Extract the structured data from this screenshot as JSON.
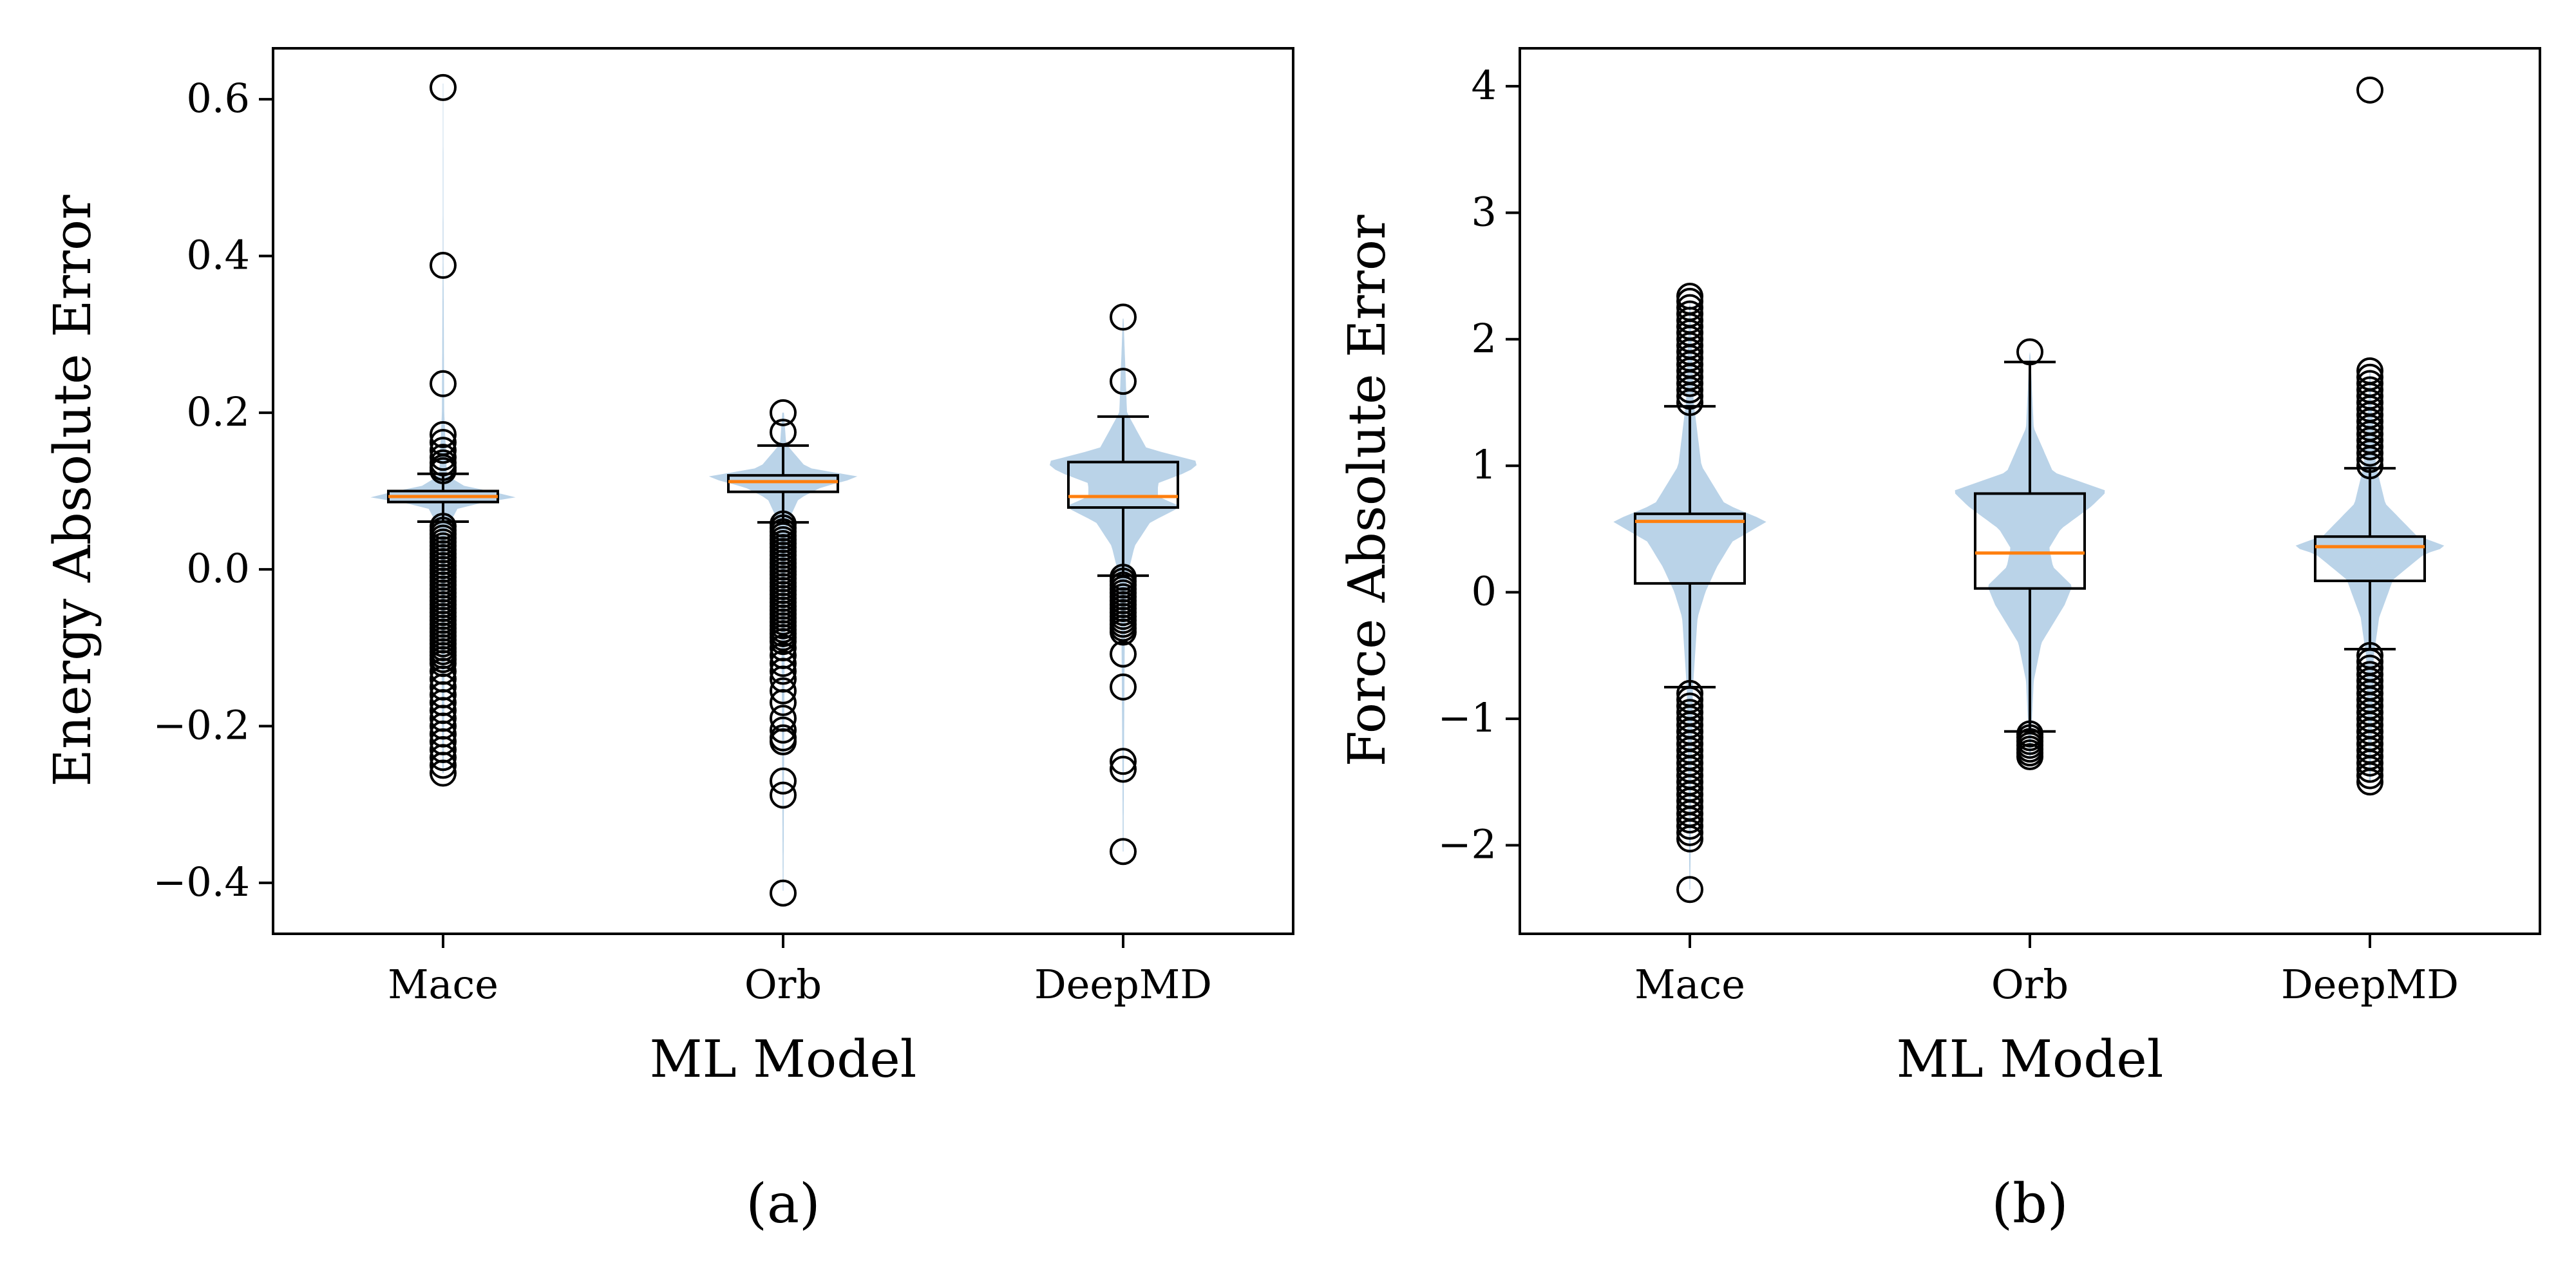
{
  "colors": {
    "violin_fill": "#a9c8e2",
    "box_edge": "#000000",
    "median": "#ff7f0e",
    "flier": "#000000",
    "background": "#ffffff"
  },
  "chart_data": [
    {
      "id": "a",
      "type": "violin+box",
      "caption": "(a)",
      "title": "",
      "xlabel": "ML Model",
      "ylabel": "Energy Absolute Error",
      "ylim": [
        -0.465,
        0.665
      ],
      "yticks": [
        -0.4,
        -0.2,
        0.0,
        0.2,
        0.4,
        0.6
      ],
      "ytick_labels": [
        "−0.4",
        "−0.2",
        "0.0",
        "0.2",
        "0.4",
        "0.6"
      ],
      "categories": [
        "Mace",
        "Orb",
        "DeepMD"
      ],
      "grid": false,
      "series": [
        {
          "category": "Mace",
          "q1": 0.086,
          "median": 0.093,
          "q3": 0.1,
          "whisker_low": 0.061,
          "whisker_high": 0.122,
          "violin_profile": [
            [
              -0.26,
              0.01
            ],
            [
              -0.2,
              0.015
            ],
            [
              -0.1,
              0.02
            ],
            [
              0.0,
              0.025
            ],
            [
              0.05,
              0.04
            ],
            [
              0.08,
              0.2
            ],
            [
              0.093,
              1.0
            ],
            [
              0.105,
              0.3
            ],
            [
              0.12,
              0.05
            ],
            [
              0.2,
              0.015
            ],
            [
              0.4,
              0.005
            ],
            [
              0.62,
              0.003
            ]
          ],
          "violin_halfwidth_fraction": 0.42,
          "outliers": [
            0.615,
            0.388,
            0.237,
            0.172,
            0.162,
            0.152,
            0.143,
            0.136,
            0.13,
            0.126,
            0.055,
            0.05,
            0.045,
            0.04,
            0.035,
            0.03,
            0.025,
            0.02,
            0.015,
            0.01,
            0.005,
            0.0,
            -0.005,
            -0.01,
            -0.015,
            -0.02,
            -0.025,
            -0.03,
            -0.035,
            -0.04,
            -0.045,
            -0.05,
            -0.055,
            -0.06,
            -0.065,
            -0.07,
            -0.075,
            -0.08,
            -0.085,
            -0.09,
            -0.095,
            -0.1,
            -0.105,
            -0.11,
            -0.115,
            -0.12,
            -0.13,
            -0.14,
            -0.15,
            -0.16,
            -0.17,
            -0.18,
            -0.19,
            -0.2,
            -0.21,
            -0.22,
            -0.23,
            -0.24,
            -0.25,
            -0.26
          ]
        },
        {
          "category": "Orb",
          "q1": 0.099,
          "median": 0.112,
          "q3": 0.12,
          "whisker_low": 0.06,
          "whisker_high": 0.158,
          "violin_profile": [
            [
              -0.41,
              0.005
            ],
            [
              -0.3,
              0.01
            ],
            [
              -0.2,
              0.015
            ],
            [
              -0.1,
              0.02
            ],
            [
              0.0,
              0.03
            ],
            [
              0.06,
              0.06
            ],
            [
              0.09,
              0.2
            ],
            [
              0.105,
              0.5
            ],
            [
              0.118,
              1.0
            ],
            [
              0.13,
              0.3
            ],
            [
              0.16,
              0.04
            ],
            [
              0.2,
              0.01
            ]
          ],
          "violin_halfwidth_fraction": 0.42,
          "outliers": [
            0.2,
            0.175,
            0.058,
            0.053,
            0.048,
            0.043,
            0.038,
            0.033,
            0.028,
            0.023,
            0.018,
            0.013,
            0.008,
            0.003,
            -0.002,
            -0.007,
            -0.012,
            -0.017,
            -0.022,
            -0.027,
            -0.032,
            -0.037,
            -0.042,
            -0.047,
            -0.052,
            -0.057,
            -0.062,
            -0.067,
            -0.072,
            -0.077,
            -0.082,
            -0.087,
            -0.092,
            -0.1,
            -0.11,
            -0.12,
            -0.13,
            -0.14,
            -0.155,
            -0.17,
            -0.19,
            -0.205,
            -0.215,
            -0.22,
            -0.27,
            -0.288,
            -0.413
          ]
        },
        {
          "category": "DeepMD",
          "q1": 0.079,
          "median": 0.093,
          "q3": 0.137,
          "whisker_low": -0.008,
          "whisker_high": 0.195,
          "violin_profile": [
            [
              -0.36,
              0.005
            ],
            [
              -0.25,
              0.01
            ],
            [
              -0.1,
              0.02
            ],
            [
              -0.01,
              0.05
            ],
            [
              0.03,
              0.15
            ],
            [
              0.06,
              0.35
            ],
            [
              0.08,
              0.75
            ],
            [
              0.093,
              0.45
            ],
            [
              0.11,
              0.45
            ],
            [
              0.125,
              0.85
            ],
            [
              0.137,
              1.0
            ],
            [
              0.155,
              0.3
            ],
            [
              0.2,
              0.05
            ],
            [
              0.32,
              0.005
            ]
          ],
          "violin_halfwidth_fraction": 0.42,
          "outliers": [
            0.322,
            0.24,
            -0.01,
            -0.015,
            -0.02,
            -0.025,
            -0.03,
            -0.035,
            -0.04,
            -0.045,
            -0.05,
            -0.055,
            -0.06,
            -0.065,
            -0.07,
            -0.075,
            -0.08,
            -0.108,
            -0.15,
            -0.245,
            -0.255,
            -0.36
          ]
        }
      ]
    },
    {
      "id": "b",
      "type": "violin+box",
      "caption": "(b)",
      "title": "",
      "xlabel": "ML Model",
      "ylabel": "Force Absolute Error",
      "ylim": [
        -2.7,
        4.3
      ],
      "yticks": [
        -2,
        -1,
        0,
        1,
        2,
        3,
        4
      ],
      "ytick_labels": [
        "−2",
        "−1",
        "0",
        "1",
        "2",
        "3",
        "4"
      ],
      "categories": [
        "Mace",
        "Orb",
        "DeepMD"
      ],
      "grid": false,
      "series": [
        {
          "category": "Mace",
          "q1": 0.07,
          "median": 0.56,
          "q3": 0.62,
          "whisker_low": -0.75,
          "whisker_high": 1.47,
          "violin_profile": [
            [
              -2.35,
              0.005
            ],
            [
              -1.5,
              0.02
            ],
            [
              -0.75,
              0.04
            ],
            [
              -0.2,
              0.1
            ],
            [
              0.0,
              0.2
            ],
            [
              0.2,
              0.35
            ],
            [
              0.4,
              0.55
            ],
            [
              0.56,
              1.0
            ],
            [
              0.7,
              0.45
            ],
            [
              1.0,
              0.15
            ],
            [
              1.5,
              0.05
            ],
            [
              2.3,
              0.005
            ]
          ],
          "violin_halfwidth_fraction": 0.42,
          "outliers": [
            2.34,
            2.3,
            2.25,
            2.2,
            2.15,
            2.1,
            2.05,
            2.0,
            1.95,
            1.9,
            1.85,
            1.8,
            1.75,
            1.7,
            1.65,
            1.6,
            1.55,
            1.5,
            -0.8,
            -0.85,
            -0.9,
            -0.95,
            -1.0,
            -1.05,
            -1.1,
            -1.15,
            -1.2,
            -1.25,
            -1.3,
            -1.35,
            -1.4,
            -1.45,
            -1.5,
            -1.55,
            -1.6,
            -1.65,
            -1.7,
            -1.75,
            -1.8,
            -1.85,
            -1.9,
            -1.95,
            -2.35
          ]
        },
        {
          "category": "Orb",
          "q1": 0.03,
          "median": 0.31,
          "q3": 0.78,
          "whisker_low": -1.1,
          "whisker_high": 1.82,
          "violin_profile": [
            [
              -1.3,
              0.01
            ],
            [
              -1.1,
              0.02
            ],
            [
              -0.7,
              0.05
            ],
            [
              -0.4,
              0.15
            ],
            [
              -0.1,
              0.45
            ],
            [
              0.05,
              0.55
            ],
            [
              0.2,
              0.3
            ],
            [
              0.35,
              0.25
            ],
            [
              0.5,
              0.4
            ],
            [
              0.68,
              0.8
            ],
            [
              0.8,
              1.0
            ],
            [
              0.95,
              0.3
            ],
            [
              1.3,
              0.05
            ],
            [
              1.9,
              0.005
            ]
          ],
          "violin_halfwidth_fraction": 0.42,
          "outliers": [
            1.9,
            -1.12,
            -1.15,
            -1.18,
            -1.21,
            -1.24,
            -1.27,
            -1.3
          ]
        },
        {
          "category": "DeepMD",
          "q1": 0.09,
          "median": 0.36,
          "q3": 0.44,
          "whisker_low": -0.45,
          "whisker_high": 0.98,
          "violin_profile": [
            [
              -1.5,
              0.01
            ],
            [
              -0.5,
              0.05
            ],
            [
              -0.2,
              0.12
            ],
            [
              0.1,
              0.3
            ],
            [
              0.3,
              0.7
            ],
            [
              0.36,
              1.0
            ],
            [
              0.45,
              0.6
            ],
            [
              0.7,
              0.2
            ],
            [
              1.0,
              0.08
            ],
            [
              1.5,
              0.02
            ],
            [
              1.75,
              0.005
            ]
          ],
          "violin_halfwidth_fraction": 0.42,
          "outliers": [
            3.97,
            1.75,
            1.7,
            1.65,
            1.6,
            1.55,
            1.5,
            1.45,
            1.4,
            1.35,
            1.3,
            1.25,
            1.2,
            1.15,
            1.1,
            1.05,
            1.0,
            -0.5,
            -0.55,
            -0.6,
            -0.65,
            -0.7,
            -0.75,
            -0.8,
            -0.85,
            -0.9,
            -0.95,
            -1.0,
            -1.05,
            -1.1,
            -1.15,
            -1.2,
            -1.25,
            -1.3,
            -1.35,
            -1.4,
            -1.45,
            -1.5
          ]
        }
      ]
    }
  ]
}
